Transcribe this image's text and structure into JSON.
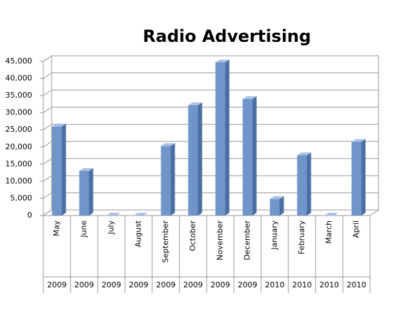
{
  "chart_data": {
    "type": "bar3d",
    "title": "Radio Advertising",
    "categories": [
      "May",
      "June",
      "July",
      "August",
      "September",
      "October",
      "November",
      "December",
      "January",
      "February",
      "March",
      "April"
    ],
    "category_years": [
      "2009",
      "2009",
      "2009",
      "2009",
      "2009",
      "2009",
      "2009",
      "2009",
      "2010",
      "2010",
      "2010",
      "2010"
    ],
    "values": [
      26000,
      13000,
      0,
      0,
      20300,
      32200,
      44700,
      34000,
      4800,
      17600,
      0,
      21500
    ],
    "color": "#6f95c9",
    "ylim": [
      0,
      45000
    ],
    "yticks": [
      0,
      {
        "value": 5000,
        "label": "5,000"
      },
      {
        "value": 10000,
        "label": "10,000"
      },
      {
        "value": 15000,
        "label": "15,000"
      },
      {
        "value": 20000,
        "label": "20,000"
      },
      {
        "value": 25000,
        "label": "25,000"
      },
      {
        "value": 30000,
        "label": "30,000"
      },
      {
        "value": 35000,
        "label": "35,000"
      },
      {
        "value": 40000,
        "label": "40,000"
      },
      {
        "value": 45000,
        "label": "45,000"
      }
    ],
    "grid": true
  }
}
